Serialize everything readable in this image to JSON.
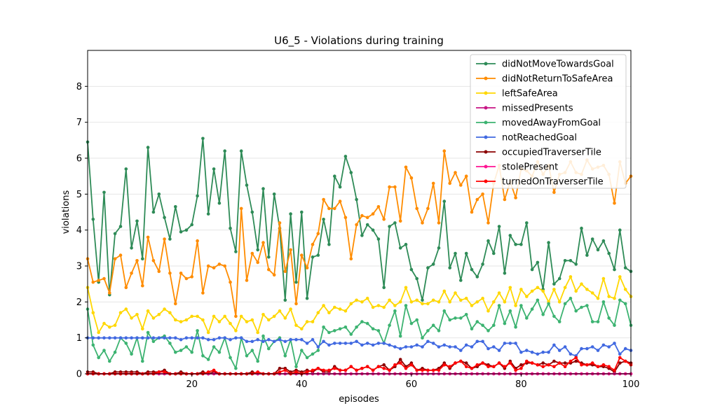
{
  "chart_data": {
    "type": "line",
    "title": "U6_5 - Violations during training",
    "xlabel": "episodes",
    "ylabel": "violations",
    "xlim": [
      1,
      100
    ],
    "ylim": [
      0,
      9
    ],
    "xticks": [
      20,
      40,
      60,
      80,
      100
    ],
    "yticks": [
      0,
      1,
      2,
      3,
      4,
      5,
      6,
      7,
      8
    ],
    "grid": "horizontal",
    "legend_position": "top-right",
    "x": [
      1,
      2,
      3,
      4,
      5,
      6,
      7,
      8,
      9,
      10,
      11,
      12,
      13,
      14,
      15,
      16,
      17,
      18,
      19,
      20,
      21,
      22,
      23,
      24,
      25,
      26,
      27,
      28,
      29,
      30,
      31,
      32,
      33,
      34,
      35,
      36,
      37,
      38,
      39,
      40,
      41,
      42,
      43,
      44,
      45,
      46,
      47,
      48,
      49,
      50,
      51,
      52,
      53,
      54,
      55,
      56,
      57,
      58,
      59,
      60,
      61,
      62,
      63,
      64,
      65,
      66,
      67,
      68,
      69,
      70,
      71,
      72,
      73,
      74,
      75,
      76,
      77,
      78,
      79,
      80,
      81,
      82,
      83,
      84,
      85,
      86,
      87,
      88,
      89,
      90,
      91,
      92,
      93,
      94,
      95,
      96,
      97,
      98,
      99,
      100
    ],
    "series": [
      {
        "name": "didNotMoveTowardsGoal",
        "color": "#2e8b57",
        "values": [
          6.45,
          4.3,
          2.55,
          5.05,
          2.2,
          3.9,
          4.1,
          5.7,
          3.5,
          4.25,
          3.2,
          6.3,
          4.5,
          5.0,
          4.35,
          3.75,
          4.65,
          3.95,
          4.0,
          4.15,
          4.95,
          6.55,
          4.45,
          5.7,
          4.75,
          6.2,
          4.05,
          3.4,
          6.2,
          5.25,
          4.5,
          3.45,
          5.15,
          3.25,
          5.0,
          4.05,
          2.05,
          4.45,
          2.55,
          4.5,
          2.1,
          3.25,
          3.3,
          4.3,
          3.6,
          5.5,
          5.2,
          6.05,
          5.6,
          4.85,
          3.85,
          4.15,
          4.0,
          3.75,
          2.4,
          4.1,
          4.2,
          3.5,
          3.6,
          2.9,
          2.65,
          2.05,
          2.95,
          3.05,
          3.5,
          4.8,
          2.95,
          3.35,
          2.6,
          3.35,
          2.9,
          2.7,
          3.05,
          3.7,
          3.35,
          4.1,
          2.8,
          3.85,
          3.6,
          3.6,
          4.2,
          2.9,
          3.1,
          2.35,
          3.65,
          2.5,
          2.65,
          3.15,
          3.15,
          3.05,
          4.05,
          3.3,
          3.75,
          3.45,
          3.7,
          3.35,
          2.9,
          4.0,
          2.95,
          2.85
        ]
      },
      {
        "name": "didNotReturnToSafeArea",
        "color": "#ff8c00",
        "values": [
          3.2,
          2.55,
          2.6,
          2.65,
          2.25,
          3.2,
          3.3,
          2.4,
          2.8,
          3.15,
          2.45,
          3.8,
          3.15,
          2.85,
          3.75,
          2.8,
          1.95,
          2.8,
          2.65,
          2.7,
          3.7,
          2.25,
          3.0,
          2.95,
          3.05,
          3.0,
          2.55,
          1.6,
          4.6,
          2.6,
          3.35,
          3.1,
          3.65,
          2.9,
          2.75,
          4.2,
          2.85,
          3.45,
          1.95,
          3.3,
          2.95,
          3.6,
          3.9,
          4.85,
          4.6,
          4.6,
          4.8,
          4.35,
          3.2,
          4.15,
          4.4,
          4.35,
          4.45,
          4.65,
          4.3,
          5.2,
          5.2,
          4.25,
          5.75,
          5.45,
          4.6,
          4.2,
          4.6,
          5.3,
          4.2,
          6.2,
          5.3,
          5.6,
          5.25,
          5.5,
          4.5,
          4.85,
          5.0,
          4.2,
          5.3,
          5.8,
          4.85,
          5.35,
          4.9,
          5.7,
          5.65,
          5.5,
          5.9,
          5.55,
          5.8,
          5.05,
          5.55,
          5.6,
          5.9,
          5.6,
          5.55,
          5.95,
          5.7,
          5.75,
          5.8,
          5.55,
          4.75,
          5.9,
          5.3,
          5.5
        ]
      },
      {
        "name": "leftSafeArea",
        "color": "#ffd700",
        "values": [
          2.4,
          1.7,
          1.15,
          1.4,
          1.3,
          1.35,
          1.7,
          1.8,
          1.55,
          1.65,
          1.25,
          1.75,
          1.55,
          1.65,
          1.8,
          1.7,
          1.5,
          1.45,
          1.5,
          1.6,
          1.6,
          1.5,
          1.15,
          1.6,
          1.45,
          1.6,
          1.4,
          1.2,
          1.6,
          1.45,
          1.5,
          1.15,
          1.65,
          1.5,
          1.6,
          1.75,
          1.55,
          1.8,
          1.35,
          1.25,
          1.45,
          1.45,
          1.7,
          1.9,
          1.7,
          1.85,
          1.8,
          1.75,
          1.95,
          2.05,
          2.0,
          2.1,
          1.85,
          1.9,
          1.85,
          2.05,
          1.9,
          2.0,
          2.4,
          2.0,
          2.05,
          1.95,
          1.95,
          2.05,
          2.0,
          2.3,
          2.0,
          2.25,
          2.05,
          2.1,
          1.9,
          2.0,
          2.1,
          1.75,
          2.0,
          2.25,
          2.0,
          2.4,
          1.9,
          2.35,
          2.15,
          2.3,
          2.4,
          2.3,
          2.0,
          2.35,
          2.0,
          2.4,
          2.7,
          2.3,
          2.5,
          2.35,
          2.25,
          2.1,
          2.65,
          2.15,
          2.1,
          2.7,
          2.35,
          2.15
        ]
      },
      {
        "name": "missedPresents",
        "color": "#c71585",
        "values": [
          0,
          0,
          0,
          0,
          0,
          0,
          0,
          0,
          0,
          0,
          0,
          0,
          0,
          0,
          0,
          0,
          0,
          0,
          0,
          0,
          0,
          0,
          0,
          0,
          0,
          0,
          0,
          0,
          0,
          0,
          0,
          0,
          0,
          0,
          0,
          0,
          0,
          0,
          0,
          0,
          0,
          0,
          0,
          0,
          0,
          0,
          0,
          0,
          0,
          0,
          0,
          0,
          0,
          0,
          0,
          0,
          0,
          0,
          0,
          0,
          0,
          0,
          0,
          0,
          0,
          0,
          0,
          0,
          0,
          0,
          0,
          0,
          0,
          0,
          0,
          0,
          0,
          0,
          0,
          0,
          0,
          0,
          0,
          0,
          0,
          0,
          0,
          0,
          0,
          0,
          0,
          0,
          0,
          0,
          0,
          0,
          0,
          0,
          0,
          0
        ]
      },
      {
        "name": "movedAwayFromGoal",
        "color": "#3cb371",
        "values": [
          1.8,
          0.8,
          0.45,
          0.65,
          0.35,
          0.6,
          1.0,
          0.85,
          0.55,
          1.0,
          0.35,
          1.15,
          0.9,
          1.0,
          1.05,
          0.85,
          0.6,
          0.65,
          0.75,
          0.6,
          1.2,
          0.5,
          0.4,
          0.75,
          0.6,
          1.0,
          0.45,
          0.15,
          1.0,
          0.5,
          0.65,
          0.35,
          1.05,
          0.7,
          0.9,
          1.0,
          0.5,
          0.95,
          0.2,
          0.65,
          0.45,
          0.55,
          0.65,
          1.3,
          1.15,
          1.2,
          1.25,
          1.3,
          1.1,
          1.3,
          1.45,
          1.4,
          1.25,
          1.2,
          0.85,
          1.35,
          1.75,
          1.05,
          1.9,
          1.4,
          1.5,
          1.0,
          1.2,
          1.35,
          1.2,
          1.75,
          1.5,
          1.55,
          1.55,
          1.65,
          1.25,
          1.45,
          1.35,
          1.2,
          1.35,
          1.9,
          1.4,
          1.75,
          1.3,
          1.9,
          1.55,
          1.8,
          2.05,
          1.65,
          1.95,
          1.6,
          1.45,
          1.95,
          2.1,
          1.75,
          1.85,
          1.9,
          1.45,
          1.45,
          2.0,
          1.55,
          1.35,
          2.05,
          1.95,
          1.35
        ]
      },
      {
        "name": "notReachedGoal",
        "color": "#4169e1",
        "values": [
          1.0,
          1.0,
          1.0,
          1.0,
          1.0,
          1.0,
          1.0,
          1.0,
          1.0,
          1.0,
          1.0,
          1.0,
          1.0,
          1.0,
          1.0,
          1.0,
          1.0,
          0.95,
          1.0,
          1.0,
          1.0,
          1.0,
          0.95,
          0.95,
          1.0,
          1.0,
          0.95,
          1.0,
          1.0,
          0.9,
          0.9,
          0.95,
          0.9,
          0.95,
          0.9,
          0.95,
          0.9,
          0.95,
          0.95,
          0.95,
          0.85,
          0.95,
          0.75,
          0.9,
          0.8,
          0.85,
          0.85,
          0.85,
          0.85,
          0.9,
          0.8,
          0.85,
          0.8,
          0.85,
          0.85,
          0.8,
          0.75,
          0.7,
          0.75,
          0.75,
          0.8,
          0.75,
          0.9,
          0.85,
          0.75,
          0.8,
          0.75,
          0.75,
          0.65,
          0.8,
          0.75,
          0.9,
          0.9,
          0.7,
          0.75,
          0.65,
          0.85,
          0.85,
          0.85,
          0.6,
          0.65,
          0.6,
          0.55,
          0.6,
          0.6,
          0.8,
          0.65,
          0.75,
          0.55,
          0.5,
          0.7,
          0.7,
          0.75,
          0.65,
          0.8,
          0.75,
          0.85,
          0.55,
          0.7,
          0.65
        ]
      },
      {
        "name": "occupiedTraverserTile",
        "color": "#8b0000",
        "values": [
          0.05,
          0.05,
          0,
          0,
          0,
          0.05,
          0.05,
          0.05,
          0.05,
          0.05,
          0,
          0.05,
          0.05,
          0.05,
          0.1,
          0,
          0,
          0.05,
          0,
          0,
          0,
          0.05,
          0,
          0.05,
          0,
          0,
          0,
          0,
          0,
          0,
          0.05,
          0,
          0,
          0,
          0,
          0.15,
          0.15,
          0.05,
          0.1,
          0.05,
          0.1,
          0.05,
          0.15,
          0.05,
          0.05,
          0.2,
          0.1,
          0.1,
          0.2,
          0.1,
          0.15,
          0.2,
          0.1,
          0.2,
          0.25,
          0.1,
          0.2,
          0.4,
          0.2,
          0.3,
          0.1,
          0.15,
          0.1,
          0.1,
          0.15,
          0.3,
          0.15,
          0.3,
          0.35,
          0.3,
          0.15,
          0.2,
          0.3,
          0.25,
          0.2,
          0.3,
          0.15,
          0.35,
          0.15,
          0.25,
          0.3,
          0.3,
          0.25,
          0.3,
          0.25,
          0.35,
          0.3,
          0.3,
          0.3,
          0.35,
          0.3,
          0.25,
          0.25,
          0.2,
          0.2,
          0.15,
          0.05,
          0.3,
          0.35,
          0.3
        ]
      },
      {
        "name": "stolePresent",
        "color": "#ff1493",
        "values": [
          0,
          0,
          0,
          0,
          0,
          0,
          0,
          0,
          0,
          0,
          0,
          0,
          0,
          0,
          0,
          0,
          0,
          0,
          0,
          0,
          0,
          0,
          0,
          0,
          0,
          0,
          0,
          0,
          0,
          0,
          0,
          0,
          0,
          0,
          0,
          0,
          0,
          0,
          0,
          0,
          0,
          0,
          0,
          0,
          0,
          0,
          0,
          0,
          0,
          0,
          0,
          0,
          0,
          0,
          0,
          0,
          0,
          0,
          0,
          0,
          0,
          0,
          0,
          0,
          0,
          0,
          0,
          0,
          0,
          0,
          0,
          0,
          0,
          0,
          0,
          0,
          0,
          0,
          0,
          0,
          0,
          0,
          0,
          0,
          0,
          0,
          0,
          0,
          0,
          0,
          0,
          0,
          0,
          0,
          0,
          0,
          0,
          0,
          0,
          0
        ]
      },
      {
        "name": "turnedOnTraverserTile",
        "color": "#ff0000",
        "values": [
          0,
          0,
          0,
          0,
          0,
          0,
          0,
          0,
          0,
          0,
          0,
          0,
          0,
          0.05,
          0.05,
          0,
          0,
          0,
          0,
          0,
          0,
          0,
          0.05,
          0.1,
          0,
          0,
          0,
          0,
          0,
          0,
          0,
          0.05,
          0,
          0,
          0,
          0.05,
          0.1,
          0,
          0.05,
          0,
          0.05,
          0.1,
          0.15,
          0.1,
          0.1,
          0.15,
          0.1,
          0.1,
          0.2,
          0.1,
          0.15,
          0.2,
          0.1,
          0.2,
          0.15,
          0.1,
          0.25,
          0.3,
          0.15,
          0.25,
          0.1,
          0.1,
          0.1,
          0.1,
          0.1,
          0.25,
          0.2,
          0.3,
          0.35,
          0.2,
          0.15,
          0.25,
          0.3,
          0.2,
          0.2,
          0.3,
          0.2,
          0.3,
          0.1,
          0.15,
          0.35,
          0.3,
          0.25,
          0.2,
          0.25,
          0.2,
          0.3,
          0.2,
          0.35,
          0.45,
          0.25,
          0.25,
          0.3,
          0.2,
          0.25,
          0.2,
          0.1,
          0.45,
          0.35,
          0.25
        ]
      }
    ]
  }
}
